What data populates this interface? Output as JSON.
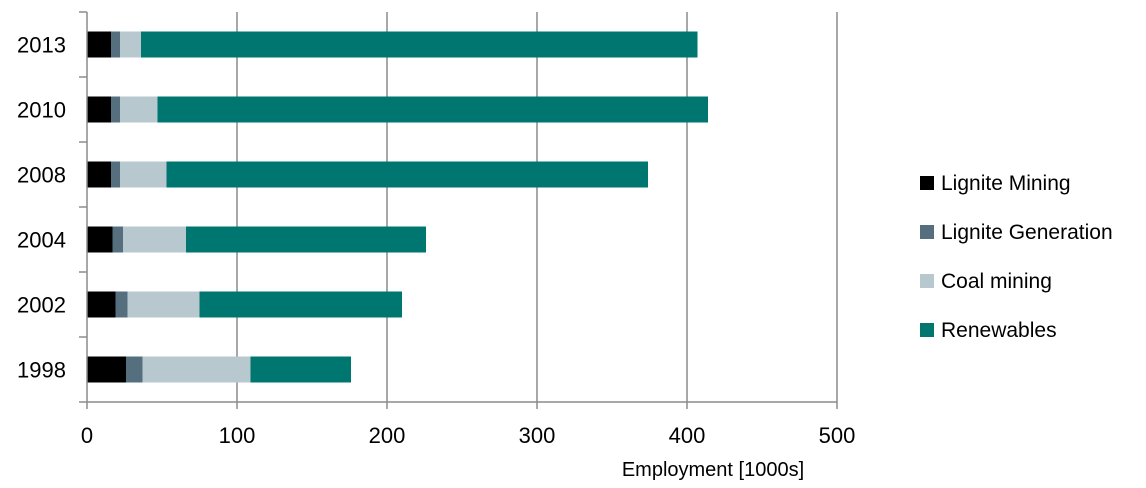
{
  "chart_data": {
    "type": "bar",
    "orientation": "horizontal",
    "stacked": true,
    "categories": [
      "2013",
      "2010",
      "2008",
      "2004",
      "2002",
      "1998"
    ],
    "series": [
      {
        "name": "Lignite Mining",
        "color": "#000000",
        "values": [
          16,
          16,
          16,
          17,
          19,
          26
        ]
      },
      {
        "name": "Lignite Generation",
        "color": "#566f7f",
        "values": [
          6,
          6,
          6,
          7,
          8,
          11
        ]
      },
      {
        "name": "Coal mining",
        "color": "#b8c8cf",
        "values": [
          14,
          25,
          31,
          42,
          48,
          72
        ]
      },
      {
        "name": "Renewables",
        "color": "#007670",
        "values": [
          371,
          367,
          321,
          160,
          135,
          67
        ]
      }
    ],
    "xlabel": "Employment [1000s]",
    "ylabel": "",
    "xlim": [
      0,
      500
    ],
    "xticks": [
      0,
      100,
      200,
      300,
      400,
      500
    ],
    "grid": "vertical",
    "legend": "right"
  }
}
